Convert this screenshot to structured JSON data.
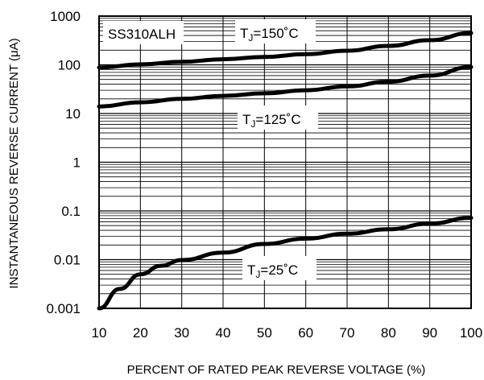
{
  "chart_data": {
    "type": "line",
    "title": "",
    "xlabel": "PERCENT OF RATED PEAK REVERSE VOLTAGE (%)",
    "ylabel": "INSTANTANEOUS REVERSE CURRENT (μA)",
    "xlim": [
      10,
      100
    ],
    "ylim": [
      0.001,
      1000
    ],
    "yscale": "log",
    "grid": true,
    "x_ticks": [
      "10",
      "20",
      "30",
      "40",
      "50",
      "60",
      "70",
      "80",
      "90",
      "100"
    ],
    "y_ticks": [
      "0.001",
      "0.01",
      "0.1",
      "1",
      "10",
      "100",
      "1000"
    ],
    "part_label": "SS310ALH",
    "series": [
      {
        "label_main": "T",
        "label_sub": "J",
        "label_rest": "=150˚C",
        "x": [
          10,
          20,
          30,
          40,
          50,
          60,
          70,
          80,
          90,
          100
        ],
        "y": [
          88,
          102,
          115,
          130,
          145,
          165,
          195,
          245,
          320,
          450
        ]
      },
      {
        "label_main": "T",
        "label_sub": "J",
        "label_rest": "=125˚C",
        "x": [
          10,
          20,
          30,
          40,
          50,
          60,
          70,
          80,
          90,
          100
        ],
        "y": [
          14,
          17,
          20,
          23,
          26,
          30,
          36,
          45,
          60,
          90
        ]
      },
      {
        "label_main": "T",
        "label_sub": "J",
        "label_rest": "=25˚C",
        "x": [
          10,
          15,
          20,
          25,
          30,
          40,
          50,
          60,
          70,
          80,
          90,
          100
        ],
        "y": [
          0.001,
          0.0025,
          0.005,
          0.0075,
          0.0098,
          0.014,
          0.021,
          0.027,
          0.034,
          0.042,
          0.055,
          0.072
        ]
      }
    ]
  }
}
